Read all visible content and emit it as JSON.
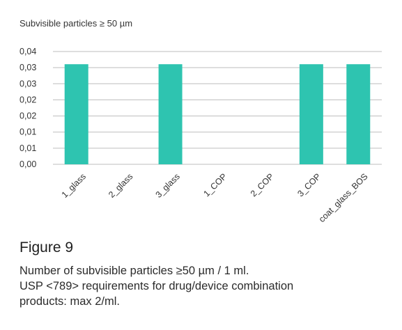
{
  "chart_data": {
    "type": "bar",
    "title": "Subvisible particles ≥ 50 µm",
    "categories": [
      "1_glass",
      "2_glass",
      "3_glass",
      "1_COP",
      "2_COP",
      "3_COP",
      "coat_glass_BOS"
    ],
    "values": [
      0.0355,
      0,
      0.0355,
      0,
      0,
      0.0355,
      0.0355
    ],
    "y_ticks": [
      "0,00",
      "0,01",
      "0,01",
      "0,02",
      "0,02",
      "0,03",
      "0,03",
      "0,04"
    ],
    "ylim": [
      0,
      0.04
    ],
    "grid": true,
    "bar_color": "#2ec4b0"
  },
  "figure_label": "Figure 9",
  "caption_lines": [
    "Number of subvisible particles ≥50 µm / 1 ml.",
    "USP <789> requirements for drug/device combination",
    "products: max 2/ml."
  ]
}
